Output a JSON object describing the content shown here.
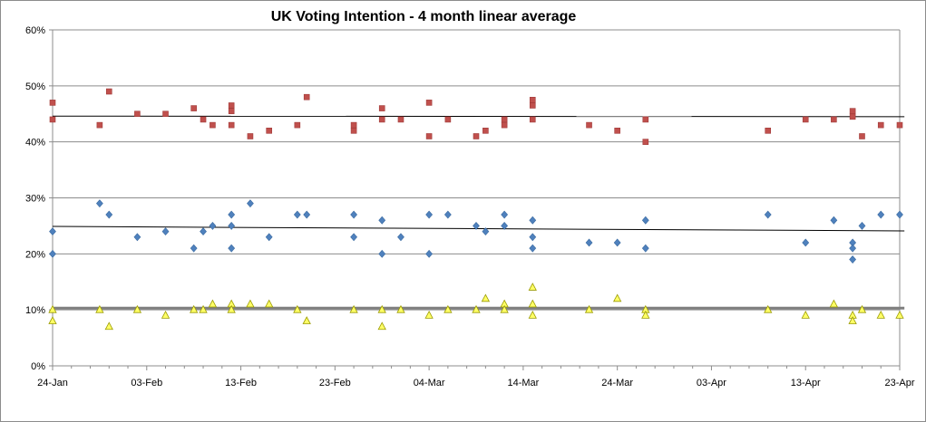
{
  "chart_data": {
    "type": "scatter",
    "title": "UK Voting Intention - 4 month linear average",
    "xlabel": "",
    "ylabel": "",
    "x_range": [
      "24-Jan",
      "24-Apr"
    ],
    "ylim": [
      0,
      60
    ],
    "x_tick_labels": [
      "24-Jan",
      "03-Feb",
      "13-Feb",
      "23-Feb",
      "04-Mar",
      "14-Mar",
      "24-Mar",
      "03-Apr",
      "13-Apr",
      "23-Apr"
    ],
    "y_tick_labels": [
      "0%",
      "10%",
      "20%",
      "30%",
      "40%",
      "50%",
      "60%"
    ],
    "y_ticks": [
      0,
      10,
      20,
      30,
      40,
      50,
      60
    ],
    "grid": true,
    "legend": "none",
    "series": [
      {
        "marker": "square",
        "color": "#c0504d",
        "edge": "#a03a38",
        "trend": [
          44.6,
          44.5
        ],
        "points": [
          [
            0,
            47
          ],
          [
            0,
            44
          ],
          [
            5,
            43
          ],
          [
            6,
            49
          ],
          [
            9,
            45
          ],
          [
            12,
            45
          ],
          [
            15,
            46
          ],
          [
            16,
            44
          ],
          [
            17,
            43
          ],
          [
            19,
            46.5
          ],
          [
            19,
            45.5
          ],
          [
            19,
            43
          ],
          [
            21,
            41
          ],
          [
            23,
            42
          ],
          [
            26,
            43
          ],
          [
            27,
            48
          ],
          [
            32,
            43
          ],
          [
            32,
            42
          ],
          [
            35,
            46
          ],
          [
            35,
            44
          ],
          [
            37,
            44
          ],
          [
            40,
            47
          ],
          [
            40,
            41
          ],
          [
            42,
            44
          ],
          [
            45,
            41
          ],
          [
            46,
            42
          ],
          [
            48,
            44
          ],
          [
            48,
            43
          ],
          [
            51,
            47.5
          ],
          [
            51,
            46.5
          ],
          [
            51,
            44
          ],
          [
            57,
            43
          ],
          [
            60,
            42
          ],
          [
            63,
            44
          ],
          [
            63,
            40
          ],
          [
            76,
            42
          ],
          [
            80,
            44
          ],
          [
            83,
            44
          ],
          [
            85,
            45.5
          ],
          [
            85,
            44.5
          ],
          [
            86,
            41
          ],
          [
            88,
            43
          ],
          [
            90,
            43
          ]
        ]
      },
      {
        "marker": "diamond",
        "color": "#4f81bd",
        "edge": "#3a6aa0",
        "trend": [
          24.9,
          24.1
        ],
        "points": [
          [
            0,
            24
          ],
          [
            0,
            20
          ],
          [
            5,
            29
          ],
          [
            6,
            27
          ],
          [
            9,
            23
          ],
          [
            12,
            24
          ],
          [
            15,
            21
          ],
          [
            16,
            24
          ],
          [
            17,
            25
          ],
          [
            19,
            27
          ],
          [
            19,
            25
          ],
          [
            19,
            21
          ],
          [
            21,
            29
          ],
          [
            23,
            23
          ],
          [
            26,
            27
          ],
          [
            27,
            27
          ],
          [
            32,
            27
          ],
          [
            32,
            23
          ],
          [
            35,
            26
          ],
          [
            35,
            20
          ],
          [
            37,
            23
          ],
          [
            40,
            27
          ],
          [
            40,
            20
          ],
          [
            42,
            27
          ],
          [
            45,
            25
          ],
          [
            46,
            24
          ],
          [
            48,
            27
          ],
          [
            48,
            25
          ],
          [
            51,
            26
          ],
          [
            51,
            23
          ],
          [
            51,
            21
          ],
          [
            57,
            22
          ],
          [
            60,
            22
          ],
          [
            63,
            26
          ],
          [
            63,
            21
          ],
          [
            76,
            27
          ],
          [
            80,
            22
          ],
          [
            83,
            26
          ],
          [
            85,
            22
          ],
          [
            85,
            21
          ],
          [
            85,
            19
          ],
          [
            86,
            25
          ],
          [
            88,
            27
          ],
          [
            90,
            27
          ]
        ]
      },
      {
        "marker": "triangle",
        "color": "#ffff66",
        "edge": "#9a9a00",
        "trend": [
          10.3,
          10.3
        ],
        "points": [
          [
            0,
            10
          ],
          [
            0,
            8
          ],
          [
            5,
            10
          ],
          [
            6,
            7
          ],
          [
            9,
            10
          ],
          [
            12,
            9
          ],
          [
            15,
            10
          ],
          [
            16,
            10
          ],
          [
            17,
            11
          ],
          [
            19,
            11
          ],
          [
            19,
            10
          ],
          [
            21,
            11
          ],
          [
            23,
            11
          ],
          [
            26,
            10
          ],
          [
            27,
            8
          ],
          [
            32,
            10
          ],
          [
            35,
            10
          ],
          [
            35,
            7
          ],
          [
            37,
            10
          ],
          [
            40,
            9
          ],
          [
            42,
            10
          ],
          [
            45,
            10
          ],
          [
            46,
            12
          ],
          [
            48,
            11
          ],
          [
            48,
            10
          ],
          [
            51,
            14
          ],
          [
            51,
            11
          ],
          [
            51,
            9
          ],
          [
            57,
            10
          ],
          [
            60,
            12
          ],
          [
            63,
            10
          ],
          [
            63,
            9
          ],
          [
            76,
            10
          ],
          [
            80,
            9
          ],
          [
            83,
            11
          ],
          [
            85,
            9
          ],
          [
            85,
            8
          ],
          [
            86,
            10
          ],
          [
            88,
            9
          ],
          [
            90,
            9
          ]
        ]
      }
    ]
  }
}
